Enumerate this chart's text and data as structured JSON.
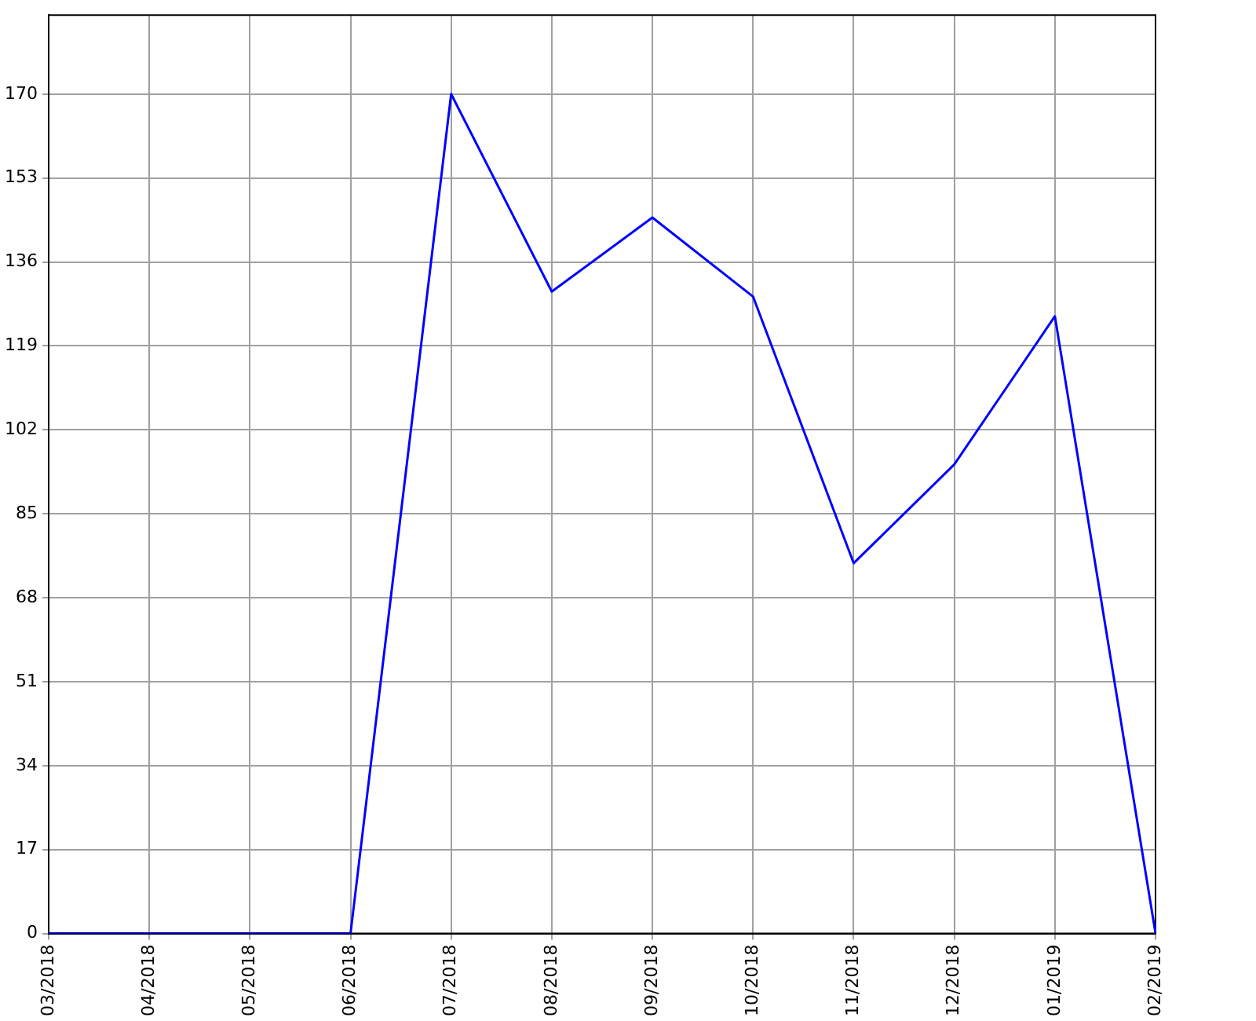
{
  "chart_data": {
    "type": "line",
    "categories": [
      "03/2018",
      "04/2018",
      "05/2018",
      "06/2018",
      "07/2018",
      "08/2018",
      "09/2018",
      "10/2018",
      "11/2018",
      "12/2018",
      "01/2019",
      "02/2019"
    ],
    "series": [
      {
        "color": "#0000ff",
        "values": [
          0,
          0,
          0,
          0,
          170,
          130,
          145,
          129,
          75,
          95,
          125,
          0
        ]
      }
    ],
    "ylim": [
      0,
      186
    ],
    "yticks": [
      0,
      17,
      34,
      51,
      68,
      85,
      102,
      119,
      136,
      153,
      170
    ],
    "grid": true,
    "legend": false,
    "marker": "none",
    "line_style": "solid"
  }
}
